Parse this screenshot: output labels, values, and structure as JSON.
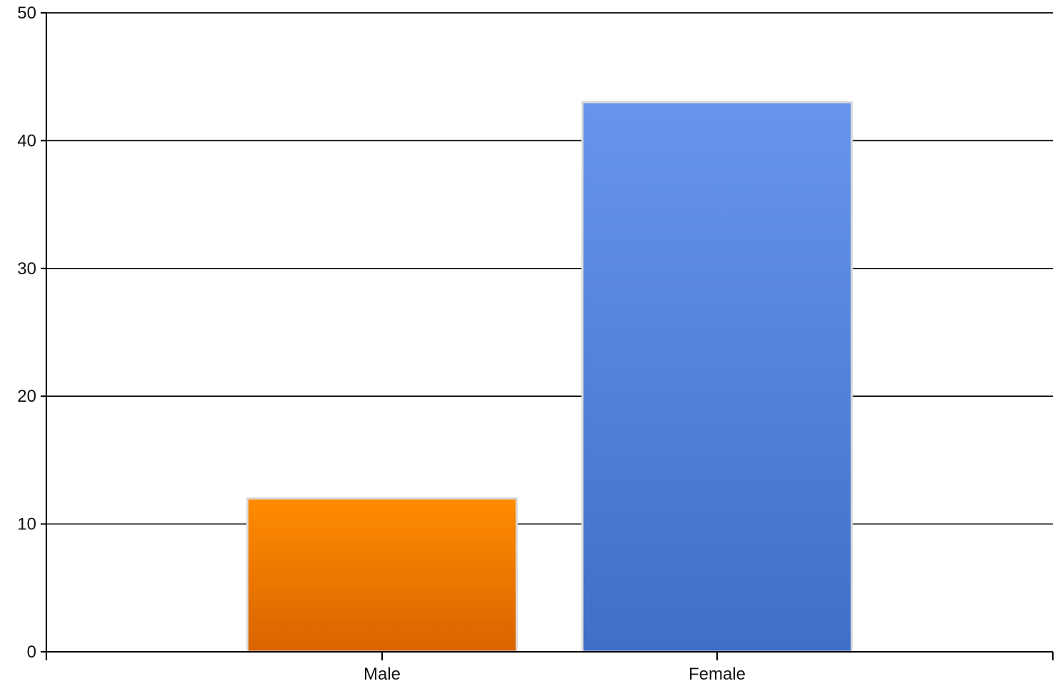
{
  "chart_data": {
    "type": "bar",
    "categories": [
      "Male",
      "Female"
    ],
    "values": [
      12,
      43
    ],
    "title": "",
    "xlabel": "",
    "ylabel": "",
    "ylim": [
      0,
      50
    ],
    "yticks": [
      "0",
      "10",
      "20",
      "30",
      "40",
      "50"
    ],
    "grid": true,
    "legend": "none",
    "colors": {
      "Male": {
        "top": "#ff8c00",
        "bottom": "#d96400"
      },
      "Female": {
        "top": "#6795ec",
        "bottom": "#3f6fc6"
      },
      "bar_border": "#d9d9d9"
    }
  }
}
